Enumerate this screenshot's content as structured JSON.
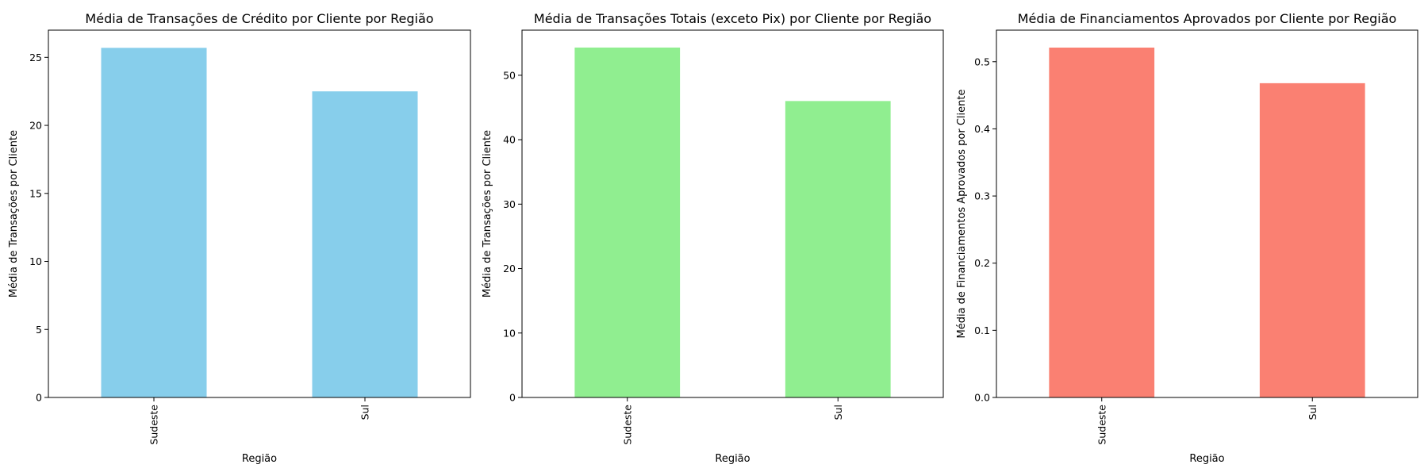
{
  "chart_data": [
    {
      "type": "bar",
      "title": "Média de Transações de Crédito por Cliente por Região",
      "xlabel": "Região",
      "ylabel": "Média de Transações por Cliente",
      "categories": [
        "Sudeste",
        "Sul"
      ],
      "values": [
        25.7,
        22.5
      ],
      "ylim": [
        0,
        27
      ],
      "yticks": [
        0,
        5,
        10,
        15,
        20,
        25
      ],
      "yticks_decimals": 0,
      "color": "#87CEEB",
      "grid": false
    },
    {
      "type": "bar",
      "title": "Média de Transações Totais (exceto Pix) por Cliente por Região",
      "xlabel": "Região",
      "ylabel": "Média de Transações por Cliente",
      "categories": [
        "Sudeste",
        "Sul"
      ],
      "values": [
        54.3,
        46.0
      ],
      "ylim": [
        0,
        57
      ],
      "yticks": [
        0,
        10,
        20,
        30,
        40,
        50
      ],
      "yticks_decimals": 0,
      "color": "#90EE90",
      "grid": false
    },
    {
      "type": "bar",
      "title": "Média de Financiamentos Aprovados por Cliente por Região",
      "xlabel": "Região",
      "ylabel": "Média de Financiamentos Aprovados por Cliente",
      "categories": [
        "Sudeste",
        "Sul"
      ],
      "values": [
        0.521,
        0.468
      ],
      "ylim": [
        0,
        0.547
      ],
      "yticks": [
        0.0,
        0.1,
        0.2,
        0.3,
        0.4,
        0.5
      ],
      "yticks_decimals": 1,
      "color": "#FA8072",
      "grid": false
    }
  ]
}
